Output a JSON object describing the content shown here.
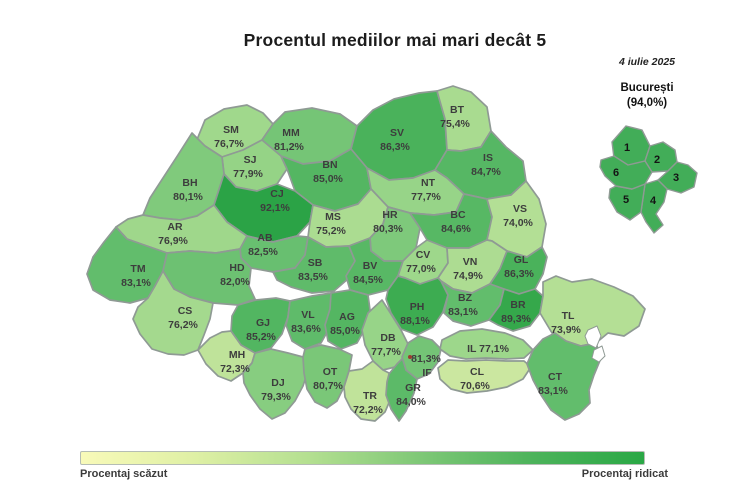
{
  "title": "Procentul mediilor mai mari decât 5",
  "date": "4 iulie 2025",
  "bucharest": {
    "name": "București",
    "value": "(94,0%)",
    "value_numeric": 94.0,
    "sectors": [
      "1",
      "2",
      "3",
      "4",
      "5",
      "6"
    ]
  },
  "legend": {
    "low": "Procentaj scăzut",
    "high": "Procentaj ridicat",
    "gradient": [
      "#f8fab9",
      "#dff0a5",
      "#b5e091",
      "#7fc877",
      "#4db35b",
      "#2aa845"
    ]
  },
  "colors": {
    "border": "#8f9a94",
    "label": "#3d3d3d",
    "sector_fill": "#42ad58",
    "water": "#ffffff",
    "marker_dot": "#9e3b30"
  },
  "chart_data": {
    "type": "choropleth",
    "region": "Romania counties",
    "title": "Procentul mediilor mai mari decât 5",
    "unit": "%",
    "scale": {
      "domain": [
        65,
        95
      ],
      "stops": [
        [
          65,
          "#f7f9b7"
        ],
        [
          71,
          "#c8e69e"
        ],
        [
          77,
          "#9ed78b"
        ],
        [
          83,
          "#63bd6d"
        ],
        [
          89,
          "#36a94c"
        ],
        [
          95,
          "#209e40"
        ]
      ],
      "low_label": "Procentaj scăzut",
      "high_label": "Procentaj ridicat"
    },
    "counties": [
      {
        "code": "SM",
        "value": 76.7,
        "display": "76,7%"
      },
      {
        "code": "MM",
        "value": 81.2,
        "display": "81,2%"
      },
      {
        "code": "SV",
        "value": 86.3,
        "display": "86,3%"
      },
      {
        "code": "BT",
        "value": 75.4,
        "display": "75,4%"
      },
      {
        "code": "IS",
        "value": 84.7,
        "display": "84,7%"
      },
      {
        "code": "SJ",
        "value": 77.9,
        "display": "77,9%"
      },
      {
        "code": "BN",
        "value": 85.0,
        "display": "85,0%"
      },
      {
        "code": "BH",
        "value": 80.1,
        "display": "80,1%"
      },
      {
        "code": "CJ",
        "value": 92.1,
        "display": "92,1%"
      },
      {
        "code": "NT",
        "value": 77.7,
        "display": "77,7%"
      },
      {
        "code": "MS",
        "value": 75.2,
        "display": "75,2%"
      },
      {
        "code": "HR",
        "value": 80.3,
        "display": "80,3%"
      },
      {
        "code": "BC",
        "value": 84.6,
        "display": "84,6%"
      },
      {
        "code": "VS",
        "value": 74.0,
        "display": "74,0%"
      },
      {
        "code": "AR",
        "value": 76.9,
        "display": "76,9%"
      },
      {
        "code": "AB",
        "value": 82.5,
        "display": "82,5%"
      },
      {
        "code": "TM",
        "value": 83.1,
        "display": "83,1%"
      },
      {
        "code": "HD",
        "value": 82.0,
        "display": "82,0%"
      },
      {
        "code": "SB",
        "value": 83.5,
        "display": "83,5%"
      },
      {
        "code": "BV",
        "value": 84.5,
        "display": "84,5%"
      },
      {
        "code": "CV",
        "value": 77.0,
        "display": "77,0%"
      },
      {
        "code": "VN",
        "value": 74.9,
        "display": "74,9%"
      },
      {
        "code": "GL",
        "value": 86.3,
        "display": "86,3%"
      },
      {
        "code": "CS",
        "value": 76.2,
        "display": "76,2%"
      },
      {
        "code": "GJ",
        "value": 85.2,
        "display": "85,2%"
      },
      {
        "code": "VL",
        "value": 83.6,
        "display": "83,6%"
      },
      {
        "code": "AG",
        "value": 85.0,
        "display": "85,0%"
      },
      {
        "code": "PH",
        "value": 88.1,
        "display": "88,1%"
      },
      {
        "code": "BZ",
        "value": 83.1,
        "display": "83,1%"
      },
      {
        "code": "BR",
        "value": 89.3,
        "display": "89,3%"
      },
      {
        "code": "TL",
        "value": 73.9,
        "display": "73,9%"
      },
      {
        "code": "MH",
        "value": 72.3,
        "display": "72,3%"
      },
      {
        "code": "DJ",
        "value": 79.3,
        "display": "79,3%"
      },
      {
        "code": "OT",
        "value": 80.7,
        "display": "80,7%"
      },
      {
        "code": "DB",
        "value": 77.7,
        "display": "77,7%"
      },
      {
        "code": "TR",
        "value": 72.2,
        "display": "72,2%"
      },
      {
        "code": "GR",
        "value": 84.0,
        "display": "84,0%"
      },
      {
        "code": "IF",
        "value": 81.3,
        "display": "81,3%"
      },
      {
        "code": "IL",
        "value": 77.1,
        "display": "77,1%"
      },
      {
        "code": "CL",
        "value": 70.6,
        "display": "70,6%"
      },
      {
        "code": "CT",
        "value": 83.1,
        "display": "83,1%"
      }
    ],
    "bucharest": {
      "name": "București",
      "value": 94.0,
      "display": "(94,0%)",
      "sectors": [
        1,
        2,
        3,
        4,
        5,
        6
      ]
    }
  }
}
